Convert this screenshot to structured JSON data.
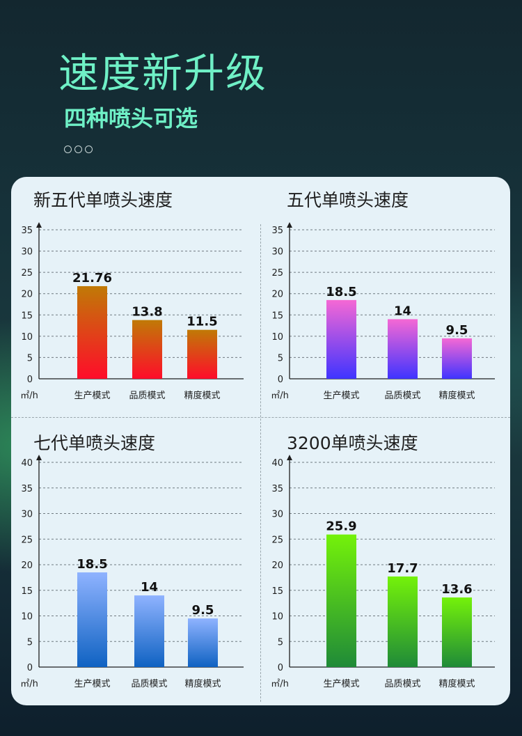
{
  "header": {
    "title": "速度新升级",
    "subtitle": "四种喷头可选"
  },
  "chart_data": [
    {
      "type": "bar",
      "title": "新五代单喷头速度",
      "unit_label": "㎡/h",
      "categories": [
        "生产模式",
        "品质模式",
        "精度模式"
      ],
      "values": [
        21.76,
        13.8,
        11.5
      ],
      "value_labels": [
        "21.76",
        "13.8",
        "11.5"
      ],
      "ylim": [
        0,
        35
      ],
      "yticks": [
        0,
        5,
        10,
        15,
        20,
        25,
        30,
        35
      ],
      "bar_gradient": [
        "#c07a06",
        "#ff0c2a"
      ],
      "grid": true
    },
    {
      "type": "bar",
      "title": "五代单喷头速度",
      "unit_label": "㎡/h",
      "categories": [
        "生产模式",
        "品质模式",
        "精度模式"
      ],
      "values": [
        18.5,
        14,
        9.5
      ],
      "value_labels": [
        "18.5",
        "14",
        "9.5"
      ],
      "ylim": [
        0,
        35
      ],
      "yticks": [
        0,
        5,
        10,
        15,
        20,
        25,
        30,
        35
      ],
      "bar_gradient": [
        "#f568d4",
        "#3f34ff"
      ],
      "grid": true
    },
    {
      "type": "bar",
      "title": "七代单喷头速度",
      "unit_label": "㎡/h",
      "categories": [
        "生产模式",
        "品质模式",
        "精度模式"
      ],
      "values": [
        18.5,
        14,
        9.5
      ],
      "value_labels": [
        "18.5",
        "14",
        "9.5"
      ],
      "ylim": [
        0,
        40
      ],
      "yticks": [
        0,
        5,
        10,
        15,
        20,
        25,
        30,
        35,
        40
      ],
      "bar_gradient": [
        "#8fb3ff",
        "#0f62c2"
      ],
      "grid": true
    },
    {
      "type": "bar",
      "title": "3200单喷头速度",
      "unit_label": "㎡/h",
      "categories": [
        "生产模式",
        "品质模式",
        "精度模式"
      ],
      "values": [
        25.9,
        17.7,
        13.6
      ],
      "value_labels": [
        "25.9",
        "17.7",
        "13.6"
      ],
      "ylim": [
        0,
        40
      ],
      "yticks": [
        0,
        5,
        10,
        15,
        20,
        25,
        30,
        35,
        40
      ],
      "bar_gradient": [
        "#74f20a",
        "#1f8a38"
      ],
      "grid": true
    }
  ]
}
